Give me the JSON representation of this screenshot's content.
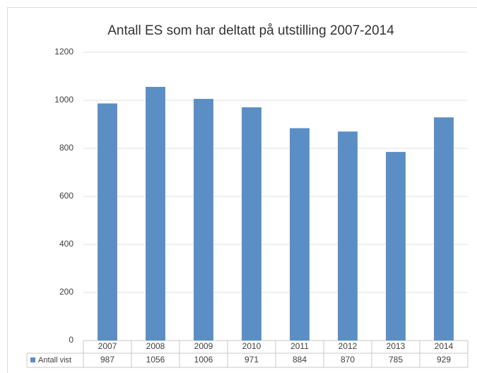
{
  "chart_data": {
    "type": "bar",
    "title": "Antall ES som har deltatt på utstilling 2007-2014",
    "categories": [
      "2007",
      "2008",
      "2009",
      "2010",
      "2011",
      "2012",
      "2013",
      "2014"
    ],
    "series": [
      {
        "name": "Antall vist",
        "color": "#5b8ec4",
        "values": [
          987,
          1056,
          1006,
          971,
          884,
          870,
          785,
          929
        ]
      }
    ],
    "ylim": [
      0,
      1200
    ],
    "yticks": [
      0,
      200,
      400,
      600,
      800,
      1000,
      1200
    ],
    "grid": true,
    "legend": "bottom"
  }
}
